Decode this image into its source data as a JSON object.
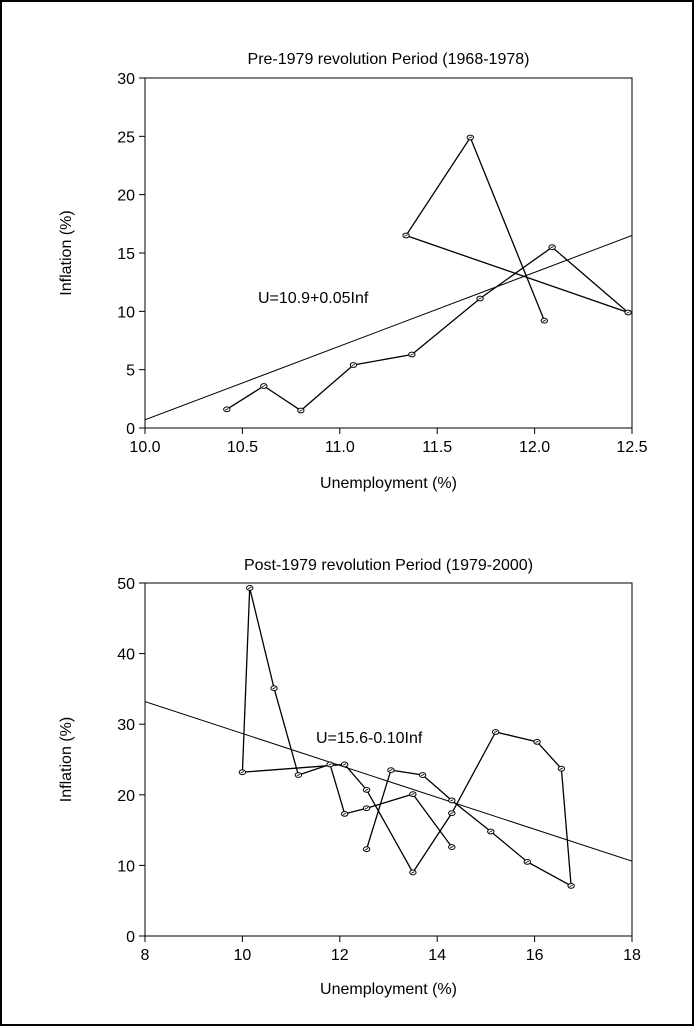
{
  "chart_data": [
    {
      "type": "line",
      "title": "Pre-1979 revolution Period (1968-1978)",
      "xlabel": "Unemployment (%)",
      "ylabel": "Inflation (%)",
      "xlim": [
        10.0,
        12.5
      ],
      "ylim": [
        0,
        30
      ],
      "xticks": [
        "10.0",
        "10.5",
        "11.0",
        "11.5",
        "12.0",
        "12.5"
      ],
      "yticks": [
        "0",
        "5",
        "10",
        "15",
        "20",
        "25",
        "30"
      ],
      "grid": false,
      "series": [
        {
          "x": [
            10.42,
            10.61,
            10.8,
            11.07,
            11.37,
            11.72,
            12.09,
            12.48,
            11.34,
            11.67,
            12.05
          ],
          "y": [
            1.6,
            3.6,
            1.5,
            5.4,
            6.3,
            11.1,
            15.5,
            9.9,
            16.5,
            24.9,
            9.2
          ]
        }
      ],
      "fit_line": {
        "intercept": 0.5,
        "slope": 6.4
      },
      "annotation": "U=10.9+0.05Inf"
    },
    {
      "type": "line",
      "title": "Post-1979 revolution Period (1979-2000)",
      "xlabel": "Unemployment (%)",
      "ylabel": "Inflation (%)",
      "xlim": [
        8,
        18
      ],
      "ylim": [
        0,
        50
      ],
      "xticks": [
        "8",
        "10",
        "12",
        "14",
        "16",
        "18"
      ],
      "yticks": [
        "0",
        "10",
        "20",
        "30",
        "40",
        "50"
      ],
      "grid": false,
      "series": [
        {
          "x": [
            12.55,
            13.05,
            13.7,
            14.3,
            15.1,
            15.85,
            16.75,
            16.55,
            16.05,
            15.2,
            14.3,
            13.5,
            12.55,
            12.1,
            10.0,
            10.15,
            10.65,
            11.15,
            11.8,
            12.1,
            12.55,
            13.5,
            14.3
          ],
          "y": [
            12.3,
            23.5,
            22.8,
            19.2,
            14.8,
            10.5,
            7.1,
            23.7,
            27.5,
            28.9,
            17.4,
            9.0,
            20.7,
            24.3,
            23.2,
            49.3,
            35.1,
            22.8,
            24.3,
            17.3,
            18.1,
            20.1,
            12.6
          ]
        }
      ],
      "fit_line": {
        "x0": 8,
        "y0": 33.2,
        "x1": 18,
        "y1": 10.6
      },
      "annotation": "U=15.6-0.10Inf"
    }
  ]
}
